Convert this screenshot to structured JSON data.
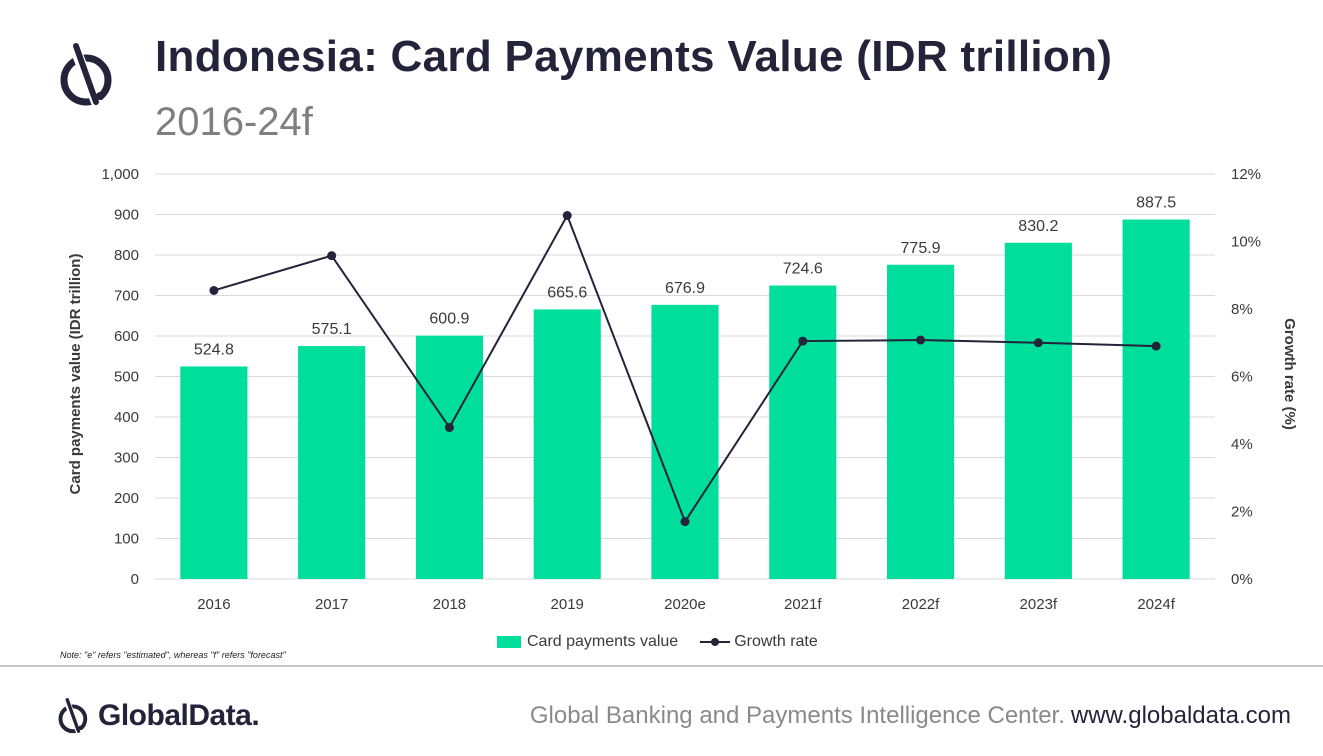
{
  "header": {
    "title": "Indonesia: Card Payments Value (IDR trillion)",
    "subtitle": "2016-24f",
    "logo_icon": "globaldata-logo-icon"
  },
  "chart_data": {
    "type": "bar",
    "categories": [
      "2016",
      "2017",
      "2018",
      "2019",
      "2020e",
      "2021f",
      "2022f",
      "2023f",
      "2024f"
    ],
    "series": [
      {
        "name": "Card payments value",
        "type": "bar",
        "axis": "left",
        "color": "#00de9b",
        "values": [
          524.8,
          575.1,
          600.9,
          665.6,
          676.9,
          724.6,
          775.9,
          830.2,
          887.5
        ],
        "labels": [
          "524.8",
          "575.1",
          "600.9",
          "665.6",
          "676.9",
          "724.6",
          "775.9",
          "830.2",
          "887.5"
        ]
      },
      {
        "name": "Growth rate",
        "type": "line",
        "axis": "right",
        "color": "#23233a",
        "values": [
          8.55,
          9.58,
          4.49,
          10.77,
          1.7,
          7.05,
          7.08,
          7.0,
          6.9
        ]
      }
    ],
    "ylabel": "Card payments value (IDR trillion)",
    "y2label": "Growth rate (%)",
    "ylim": [
      0,
      1000
    ],
    "yticks": [
      0,
      100,
      200,
      300,
      400,
      500,
      600,
      700,
      800,
      900,
      1000
    ],
    "ytick_labels": [
      "0",
      "100",
      "200",
      "300",
      "400",
      "500",
      "600",
      "700",
      "800",
      "900",
      "1,000"
    ],
    "y2lim": [
      0,
      12
    ],
    "y2ticks": [
      0,
      2,
      4,
      6,
      8,
      10,
      12
    ],
    "y2tick_labels": [
      "0%",
      "2%",
      "4%",
      "6%",
      "8%",
      "10%",
      "12%"
    ],
    "grid": true,
    "legend": "bottom"
  },
  "legend": {
    "bar_label": "Card payments value",
    "line_label": "Growth rate"
  },
  "note": "Note: \"e\" refers \"estimated\", whereas \"f\" refers \"forecast\"",
  "footer": {
    "brand": "GlobalData.",
    "center_text": "Global Banking and Payments Intelligence Center.",
    "url": "www.globaldata.com"
  }
}
